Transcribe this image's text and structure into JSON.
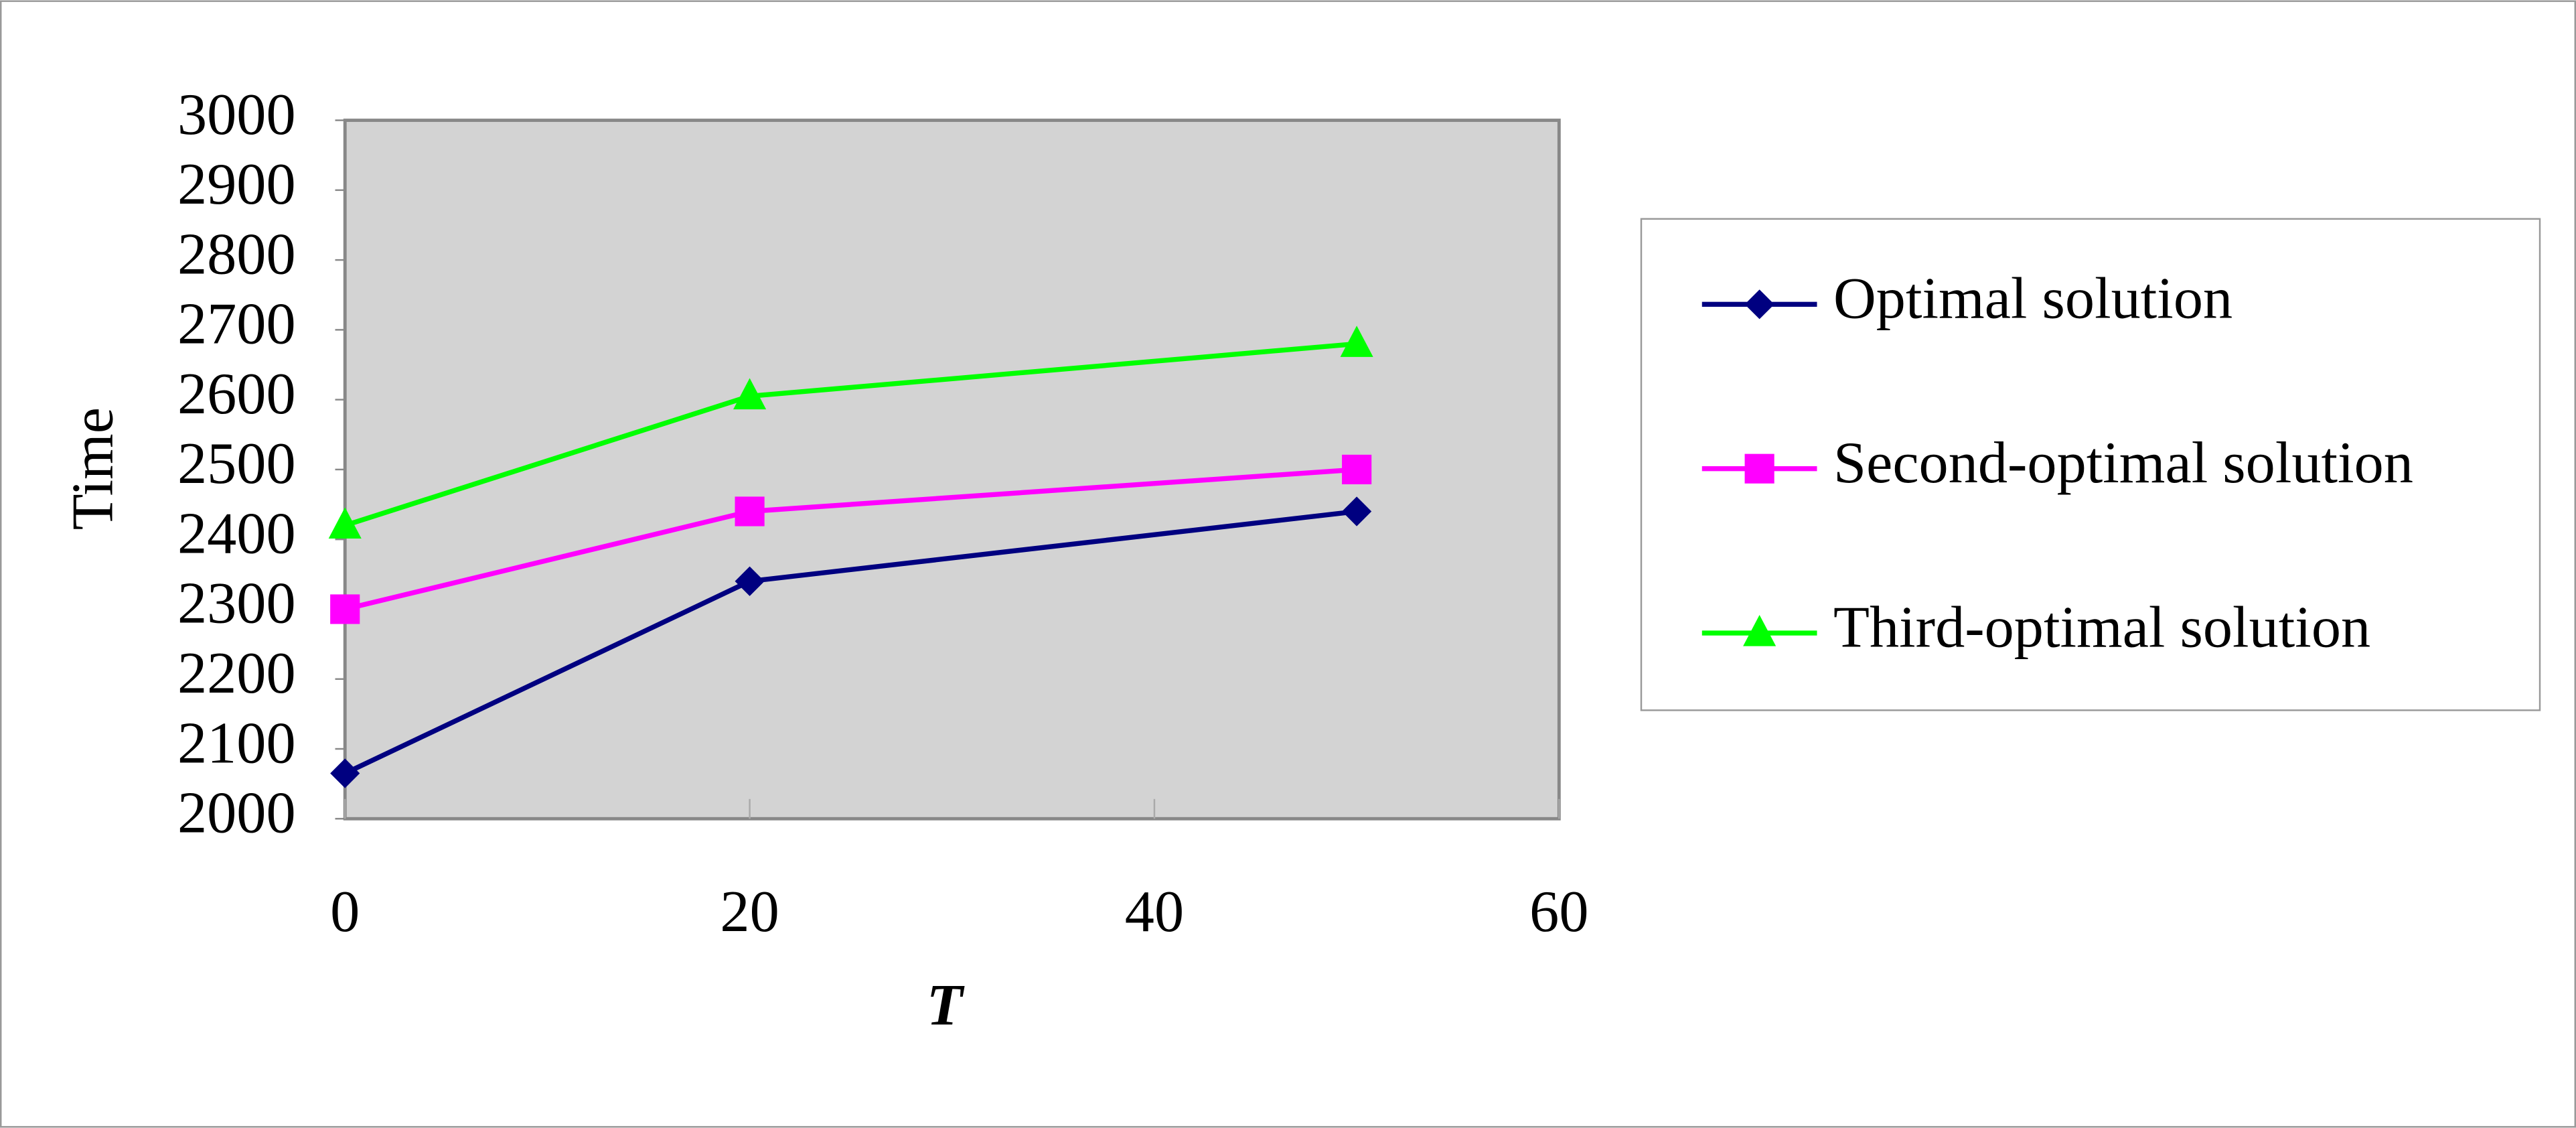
{
  "chart_data": {
    "type": "line",
    "x_label": "T",
    "y_label": "Time",
    "x": [
      0,
      20,
      50
    ],
    "series": [
      {
        "name": "Optimal solution",
        "color": "#000080",
        "marker": "diamond",
        "values": [
          2065,
          2340,
          2440
        ]
      },
      {
        "name": "Second-optimal solution",
        "color": "#ff00ff",
        "marker": "square",
        "values": [
          2300,
          2440,
          2500
        ]
      },
      {
        "name": "Third-optimal solution",
        "color": "#00ff00",
        "marker": "triangle",
        "values": [
          2420,
          2605,
          2680
        ]
      }
    ],
    "xlim": [
      0,
      60
    ],
    "xticks": [
      0,
      20,
      40,
      60
    ],
    "ylim": [
      2000,
      3000
    ],
    "yticks": [
      2000,
      2100,
      2200,
      2300,
      2400,
      2500,
      2600,
      2700,
      2800,
      2900,
      3000
    ],
    "grid": false,
    "legend": "right",
    "plot_background": "#d3d3d3"
  }
}
